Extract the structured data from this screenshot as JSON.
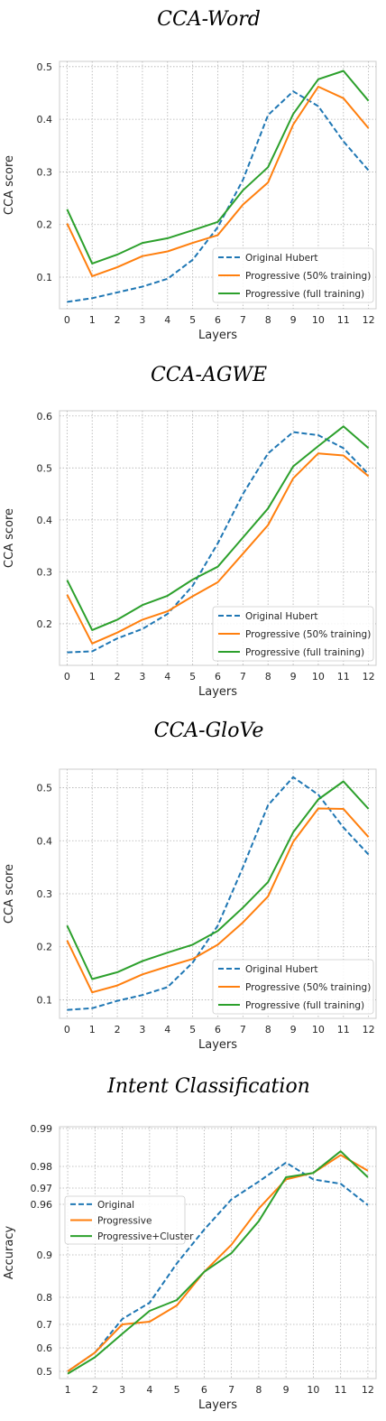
{
  "chart_data": [
    {
      "type": "line",
      "title": "CCA-Word",
      "xlabel": "Layers",
      "ylabel": "CCA score",
      "x": [
        0,
        1,
        2,
        3,
        4,
        5,
        6,
        7,
        8,
        9,
        10,
        11,
        12
      ],
      "xticks": [
        "0",
        "1",
        "2",
        "3",
        "4",
        "5",
        "6",
        "7",
        "8",
        "9",
        "10",
        "11",
        "12"
      ],
      "yticks": [
        0.1,
        0.2,
        0.3,
        0.4,
        0.5
      ],
      "ytick_labels": [
        "0.1",
        "0.2",
        "0.3",
        "0.4",
        "0.5"
      ],
      "ylim": [
        0.04,
        0.51
      ],
      "xlim": [
        -0.3,
        12.3
      ],
      "grid": true,
      "legend_position": "bottom-right",
      "series": [
        {
          "name": "Original Hubert",
          "color": "#1f77b4",
          "dashed": true,
          "values": [
            0.053,
            0.06,
            0.071,
            0.082,
            0.097,
            0.133,
            0.195,
            0.285,
            0.408,
            0.453,
            0.425,
            0.358,
            0.303
          ]
        },
        {
          "name": "Progressive (50% training)",
          "color": "#ff7f0e",
          "dashed": false,
          "values": [
            0.202,
            0.102,
            0.119,
            0.14,
            0.149,
            0.165,
            0.18,
            0.238,
            0.28,
            0.39,
            0.462,
            0.44,
            0.383
          ]
        },
        {
          "name": "Progressive (full training)",
          "color": "#2ca02c",
          "dashed": false,
          "values": [
            0.229,
            0.126,
            0.143,
            0.165,
            0.174,
            0.189,
            0.205,
            0.265,
            0.309,
            0.41,
            0.476,
            0.492,
            0.435
          ]
        }
      ]
    },
    {
      "type": "line",
      "title": "CCA-AGWE",
      "xlabel": "Layers",
      "ylabel": "CCA score",
      "x": [
        0,
        1,
        2,
        3,
        4,
        5,
        6,
        7,
        8,
        9,
        10,
        11,
        12
      ],
      "xticks": [
        "0",
        "1",
        "2",
        "3",
        "4",
        "5",
        "6",
        "7",
        "8",
        "9",
        "10",
        "11",
        "12"
      ],
      "yticks": [
        0.2,
        0.3,
        0.4,
        0.5,
        0.6
      ],
      "ytick_labels": [
        "0.2",
        "0.3",
        "0.4",
        "0.5",
        "0.6"
      ],
      "ylim": [
        0.12,
        0.61
      ],
      "xlim": [
        -0.3,
        12.3
      ],
      "grid": true,
      "legend_position": "bottom-right",
      "series": [
        {
          "name": "Original Hubert",
          "color": "#1f77b4",
          "dashed": true,
          "values": [
            0.145,
            0.147,
            0.172,
            0.19,
            0.219,
            0.273,
            0.355,
            0.45,
            0.528,
            0.569,
            0.563,
            0.538,
            0.488
          ]
        },
        {
          "name": "Progressive (50% training)",
          "color": "#ff7f0e",
          "dashed": false,
          "values": [
            0.256,
            0.162,
            0.183,
            0.208,
            0.224,
            0.253,
            0.28,
            0.335,
            0.39,
            0.48,
            0.528,
            0.524,
            0.484
          ]
        },
        {
          "name": "Progressive (full training)",
          "color": "#2ca02c",
          "dashed": false,
          "values": [
            0.284,
            0.188,
            0.208,
            0.236,
            0.254,
            0.285,
            0.31,
            0.366,
            0.422,
            0.503,
            0.542,
            0.58,
            0.538
          ]
        }
      ]
    },
    {
      "type": "line",
      "title": "CCA-GloVe",
      "xlabel": "Layers",
      "ylabel": "CCA score",
      "x": [
        0,
        1,
        2,
        3,
        4,
        5,
        6,
        7,
        8,
        9,
        10,
        11,
        12
      ],
      "xticks": [
        "0",
        "1",
        "2",
        "3",
        "4",
        "5",
        "6",
        "7",
        "8",
        "9",
        "10",
        "11",
        "12"
      ],
      "yticks": [
        0.1,
        0.2,
        0.3,
        0.4,
        0.5
      ],
      "ytick_labels": [
        "0.1",
        "0.2",
        "0.3",
        "0.4",
        "0.5"
      ],
      "ylim": [
        0.065,
        0.535
      ],
      "xlim": [
        -0.3,
        12.3
      ],
      "grid": true,
      "legend_position": "bottom-right",
      "series": [
        {
          "name": "Original Hubert",
          "color": "#1f77b4",
          "dashed": true,
          "values": [
            0.081,
            0.084,
            0.098,
            0.109,
            0.124,
            0.17,
            0.24,
            0.35,
            0.467,
            0.52,
            0.487,
            0.425,
            0.374
          ]
        },
        {
          "name": "Progressive (50% training)",
          "color": "#ff7f0e",
          "dashed": false,
          "values": [
            0.212,
            0.114,
            0.127,
            0.148,
            0.163,
            0.177,
            0.204,
            0.246,
            0.295,
            0.398,
            0.461,
            0.46,
            0.407
          ]
        },
        {
          "name": "Progressive (full training)",
          "color": "#2ca02c",
          "dashed": false,
          "values": [
            0.24,
            0.139,
            0.152,
            0.173,
            0.189,
            0.204,
            0.23,
            0.274,
            0.322,
            0.416,
            0.478,
            0.512,
            0.46
          ]
        }
      ]
    },
    {
      "type": "line",
      "title": "Intent Classification",
      "xlabel": "Layers",
      "ylabel": "Accuracy",
      "x": [
        1,
        2,
        3,
        4,
        5,
        6,
        7,
        8,
        9,
        10,
        11,
        12
      ],
      "xticks": [
        "1",
        "2",
        "3",
        "4",
        "5",
        "6",
        "7",
        "8",
        "9",
        "10",
        "11",
        "12"
      ],
      "yticks": [
        0.5,
        0.6,
        0.7,
        0.8,
        0.9,
        0.96,
        0.97,
        0.98,
        0.99
      ],
      "ytick_labels": [
        "0.5",
        "0.6",
        "0.7",
        "0.8",
        "0.9",
        "0.96",
        "0.97",
        "0.98",
        "0.99"
      ],
      "ylim": [
        0.48,
        0.99
      ],
      "xlim": [
        0.7,
        12.3
      ],
      "grid": true,
      "legend_position": "upper-left",
      "series": [
        {
          "name": "Original",
          "color": "#1f77b4",
          "dashed": true,
          "values": [
            0.5,
            0.58,
            0.72,
            0.78,
            0.88,
            0.93,
            0.963,
            0.973,
            0.981,
            0.974,
            0.972,
            0.959
          ]
        },
        {
          "name": "Progressive",
          "color": "#ff7f0e",
          "dashed": false,
          "values": [
            0.5,
            0.58,
            0.7,
            0.71,
            0.77,
            0.86,
            0.912,
            0.955,
            0.974,
            0.977,
            0.983,
            0.978
          ]
        },
        {
          "name": "Progressive+Cluster",
          "color": "#2ca02c",
          "dashed": false,
          "values": [
            0.49,
            0.56,
            0.66,
            0.75,
            0.79,
            0.86,
            0.902,
            0.94,
            0.975,
            0.977,
            0.984,
            0.975
          ]
        }
      ]
    }
  ]
}
